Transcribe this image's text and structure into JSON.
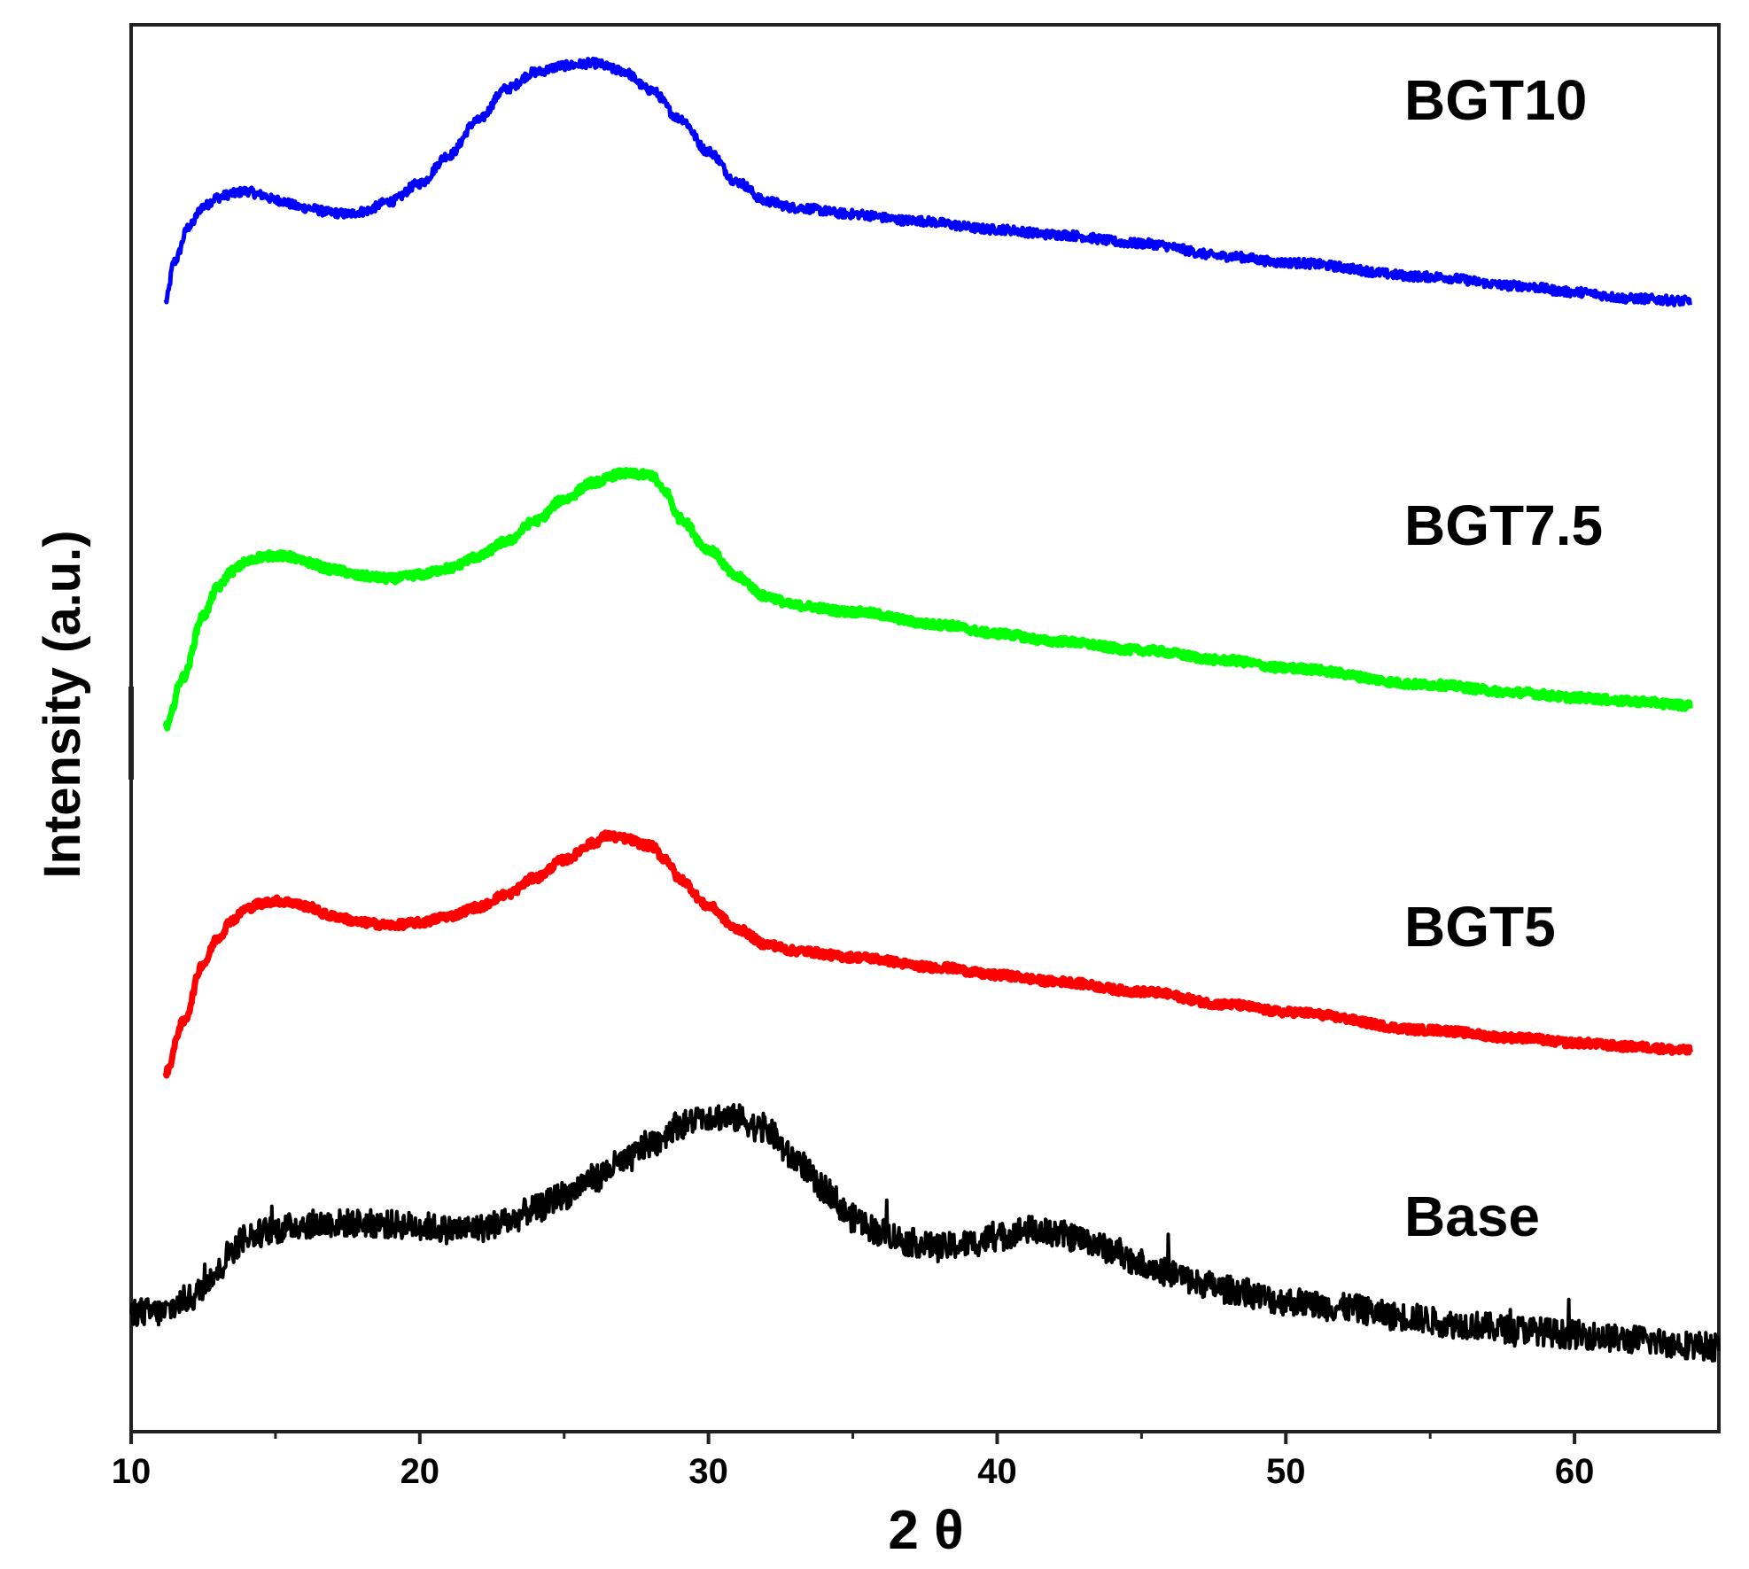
{
  "chart_data": {
    "type": "line",
    "title": "",
    "xlabel": "2 θ",
    "ylabel": "Intensity (a.u.)",
    "xlim": [
      10,
      65
    ],
    "ylim": [
      0,
      11
    ],
    "xticks": [
      10,
      20,
      30,
      40,
      50,
      60
    ],
    "yticks": [],
    "grid": false,
    "legend": "none; series labeled inline at right",
    "series": [
      {
        "name": "BGT10",
        "color": "#0000ff",
        "points": [
          [
            11.2,
            8.84
          ],
          [
            11.5,
            9.15
          ],
          [
            12,
            9.42
          ],
          [
            12.5,
            9.58
          ],
          [
            13,
            9.65
          ],
          [
            13.5,
            9.68
          ],
          [
            14,
            9.7
          ],
          [
            14.5,
            9.67
          ],
          [
            15,
            9.63
          ],
          [
            16,
            9.57
          ],
          [
            17,
            9.53
          ],
          [
            17.5,
            9.52
          ],
          [
            18,
            9.54
          ],
          [
            19,
            9.62
          ],
          [
            20,
            9.76
          ],
          [
            21,
            9.98
          ],
          [
            22,
            10.25
          ],
          [
            23,
            10.5
          ],
          [
            24,
            10.63
          ],
          [
            25,
            10.68
          ],
          [
            26,
            10.7
          ],
          [
            27,
            10.64
          ],
          [
            28,
            10.49
          ],
          [
            29,
            10.27
          ],
          [
            30,
            10.01
          ],
          [
            31,
            9.77
          ],
          [
            32,
            9.62
          ],
          [
            33,
            9.57
          ],
          [
            35,
            9.52
          ],
          [
            37,
            9.47
          ],
          [
            40,
            9.4
          ],
          [
            42,
            9.36
          ],
          [
            45,
            9.29
          ],
          [
            48,
            9.19
          ],
          [
            50,
            9.14
          ],
          [
            55,
            9.03
          ],
          [
            58,
            8.96
          ],
          [
            60,
            8.91
          ],
          [
            62,
            8.86
          ],
          [
            64,
            8.84
          ]
        ]
      },
      {
        "name": "BGT7.5",
        "color": "#00ff00",
        "points": [
          [
            11.2,
            5.51
          ],
          [
            11.8,
            5.9
          ],
          [
            12.5,
            6.38
          ],
          [
            13,
            6.6
          ],
          [
            13.5,
            6.73
          ],
          [
            14,
            6.8
          ],
          [
            14.5,
            6.84
          ],
          [
            15,
            6.85
          ],
          [
            15.5,
            6.84
          ],
          [
            16,
            6.8
          ],
          [
            17,
            6.74
          ],
          [
            18,
            6.69
          ],
          [
            19,
            6.67
          ],
          [
            20,
            6.7
          ],
          [
            21,
            6.75
          ],
          [
            22,
            6.84
          ],
          [
            23,
            6.96
          ],
          [
            24,
            7.12
          ],
          [
            25,
            7.29
          ],
          [
            26,
            7.42
          ],
          [
            27,
            7.49
          ],
          [
            28,
            7.48
          ],
          [
            28.5,
            7.35
          ],
          [
            29,
            7.14
          ],
          [
            30,
            6.9
          ],
          [
            31,
            6.68
          ],
          [
            32,
            6.53
          ],
          [
            33,
            6.46
          ],
          [
            35,
            6.41
          ],
          [
            38,
            6.31
          ],
          [
            40,
            6.24
          ],
          [
            42,
            6.18
          ],
          [
            45,
            6.11
          ],
          [
            48,
            6.03
          ],
          [
            50,
            5.97
          ],
          [
            55,
            5.84
          ],
          [
            58,
            5.78
          ],
          [
            60,
            5.74
          ],
          [
            62,
            5.71
          ],
          [
            64,
            5.68
          ]
        ]
      },
      {
        "name": "BGT5",
        "color": "#ff0000",
        "points": [
          [
            11.2,
            2.81
          ],
          [
            11.8,
            3.2
          ],
          [
            12.5,
            3.66
          ],
          [
            13,
            3.86
          ],
          [
            13.5,
            4.0
          ],
          [
            14,
            4.09
          ],
          [
            14.5,
            4.13
          ],
          [
            15,
            4.15
          ],
          [
            15.5,
            4.14
          ],
          [
            16,
            4.11
          ],
          [
            17,
            4.03
          ],
          [
            18,
            3.98
          ],
          [
            19,
            3.96
          ],
          [
            20,
            3.98
          ],
          [
            21,
            4.03
          ],
          [
            22,
            4.1
          ],
          [
            23,
            4.2
          ],
          [
            24,
            4.33
          ],
          [
            25,
            4.47
          ],
          [
            26,
            4.6
          ],
          [
            26.5,
            4.66
          ],
          [
            27,
            4.64
          ],
          [
            28,
            4.58
          ],
          [
            28.5,
            4.48
          ],
          [
            29,
            4.32
          ],
          [
            30,
            4.11
          ],
          [
            31,
            3.93
          ],
          [
            32,
            3.81
          ],
          [
            33,
            3.76
          ],
          [
            35,
            3.71
          ],
          [
            38,
            3.63
          ],
          [
            40,
            3.57
          ],
          [
            42,
            3.52
          ],
          [
            45,
            3.44
          ],
          [
            48,
            3.34
          ],
          [
            50,
            3.28
          ],
          [
            55,
            3.14
          ],
          [
            58,
            3.08
          ],
          [
            60,
            3.04
          ],
          [
            62,
            3.01
          ],
          [
            64,
            2.98
          ]
        ]
      },
      {
        "name": "Base",
        "color": "#000000",
        "points": [
          [
            10,
            0.94
          ],
          [
            11,
            0.93
          ],
          [
            12,
            1.04
          ],
          [
            13,
            1.25
          ],
          [
            13.5,
            1.43
          ],
          [
            14,
            1.53
          ],
          [
            15,
            1.58
          ],
          [
            16,
            1.62
          ],
          [
            17,
            1.63
          ],
          [
            18,
            1.63
          ],
          [
            19,
            1.62
          ],
          [
            20,
            1.61
          ],
          [
            21,
            1.58
          ],
          [
            22,
            1.59
          ],
          [
            23,
            1.64
          ],
          [
            24,
            1.74
          ],
          [
            25,
            1.85
          ],
          [
            26,
            1.98
          ],
          [
            27,
            2.1
          ],
          [
            28,
            2.25
          ],
          [
            29,
            2.4
          ],
          [
            30,
            2.47
          ],
          [
            31,
            2.45
          ],
          [
            32,
            2.35
          ],
          [
            33,
            2.13
          ],
          [
            34,
            1.9
          ],
          [
            35,
            1.67
          ],
          [
            36,
            1.56
          ],
          [
            37,
            1.48
          ],
          [
            38,
            1.44
          ],
          [
            39,
            1.47
          ],
          [
            40,
            1.52
          ],
          [
            41,
            1.58
          ],
          [
            42,
            1.55
          ],
          [
            43,
            1.5
          ],
          [
            44,
            1.42
          ],
          [
            45,
            1.32
          ],
          [
            46,
            1.24
          ],
          [
            47,
            1.16
          ],
          [
            48,
            1.11
          ],
          [
            50,
            1.02
          ],
          [
            52,
            0.97
          ],
          [
            54,
            0.9
          ],
          [
            56,
            0.84
          ],
          [
            58,
            0.8
          ],
          [
            60,
            0.76
          ],
          [
            62,
            0.72
          ],
          [
            64,
            0.68
          ],
          [
            65,
            0.66
          ]
        ]
      }
    ]
  }
}
